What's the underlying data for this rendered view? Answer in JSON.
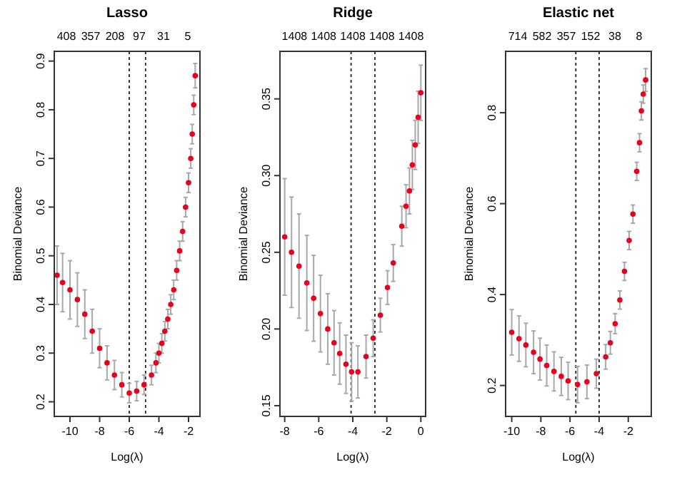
{
  "chart_data": [
    {
      "type": "scatter",
      "title": "Lasso",
      "xlabel": "Log(λ)",
      "ylabel": "Binomial Deviance",
      "marker": "circle",
      "xlim": [
        -11.06,
        -1.23
      ],
      "ylim": [
        0.17,
        0.92
      ],
      "xticks": [
        -10,
        -8,
        -6,
        -4,
        -2
      ],
      "yticks": [
        {
          "value": 0.2,
          "label": "0.2"
        },
        {
          "value": 0.3,
          "label": "0.3"
        },
        {
          "value": 0.4,
          "label": "0.4"
        },
        {
          "value": 0.5,
          "label": "0.5"
        },
        {
          "value": 0.6,
          "label": "0.6"
        },
        {
          "value": 0.7,
          "label": "0.7"
        },
        {
          "value": 0.8,
          "label": "0.8"
        },
        {
          "value": 0.9,
          "label": "0.9"
        }
      ],
      "annotations": [
        "408",
        "357",
        "208",
        "97",
        "31",
        "5"
      ],
      "series": [
        {
          "color": "#e8001c",
          "x": [
            -10.87,
            -10.5,
            -10,
            -9.5,
            -9,
            -8.5,
            -8,
            -7.5,
            -7,
            -6.5,
            -6,
            -5.5,
            -5,
            -4.5,
            -4.2,
            -4,
            -3.8,
            -3.6,
            -3.4,
            -3.2,
            -3,
            -2.8,
            -2.6,
            -2.4,
            -2.2,
            -2,
            -1.85,
            -1.75,
            -1.65,
            -1.55
          ],
          "values": [
            0.46,
            0.445,
            0.43,
            0.41,
            0.38,
            0.345,
            0.31,
            0.28,
            0.255,
            0.235,
            0.218,
            0.222,
            0.235,
            0.255,
            0.28,
            0.3,
            0.32,
            0.345,
            0.37,
            0.4,
            0.43,
            0.47,
            0.51,
            0.55,
            0.6,
            0.65,
            0.7,
            0.75,
            0.81,
            0.87
          ],
          "errors": [
            0.06,
            0.06,
            0.06,
            0.055,
            0.05,
            0.045,
            0.04,
            0.035,
            0.03,
            0.025,
            0.02,
            0.02,
            0.02,
            0.02,
            0.02,
            0.02,
            0.02,
            0.02,
            0.02,
            0.02,
            0.02,
            0.02,
            0.02,
            0.02,
            0.02,
            0.02,
            0.02,
            0.02,
            0.02,
            0.025
          ]
        }
      ],
      "ref_lines": [
        {
          "axis": "x",
          "value": -6,
          "line_style": "dotted"
        },
        {
          "axis": "x",
          "value": -4.9,
          "line_style": "dotted"
        }
      ]
    },
    {
      "type": "scatter",
      "title": "Ridge",
      "xlabel": "Log(λ)",
      "ylabel": "Binomial Deviance",
      "marker": "circle",
      "xlim": [
        -8.28,
        0.28
      ],
      "ylim": [
        0.143,
        0.381
      ],
      "xticks": [
        -8,
        -6,
        -4,
        -2,
        0
      ],
      "yticks": [
        {
          "value": 0.15,
          "label": "0.15"
        },
        {
          "value": 0.2,
          "label": "0.20"
        },
        {
          "value": 0.25,
          "label": "0.25"
        },
        {
          "value": 0.3,
          "label": "0.30"
        },
        {
          "value": 0.35,
          "label": "0.35"
        }
      ],
      "annotations": [
        "1408",
        "1408",
        "1408",
        "1408",
        "1408"
      ],
      "series": [
        {
          "color": "#e8001c",
          "x": [
            -8,
            -7.6,
            -7.16,
            -6.7,
            -6.3,
            -5.9,
            -5.47,
            -5.1,
            -4.77,
            -4.4,
            -4.07,
            -3.7,
            -3.22,
            -2.8,
            -2.38,
            -1.96,
            -1.62,
            -1.12,
            -0.87,
            -0.67,
            -0.5,
            -0.33,
            -0.16,
            0
          ],
          "values": [
            0.26,
            0.25,
            0.241,
            0.23,
            0.22,
            0.21,
            0.2,
            0.191,
            0.184,
            0.177,
            0.172,
            0.172,
            0.182,
            0.194,
            0.209,
            0.227,
            0.243,
            0.267,
            0.28,
            0.29,
            0.307,
            0.32,
            0.338,
            0.354
          ],
          "errors": [
            0.038,
            0.036,
            0.034,
            0.031,
            0.028,
            0.025,
            0.023,
            0.021,
            0.02,
            0.019,
            0.019,
            0.017,
            0.014,
            0.012,
            0.011,
            0.011,
            0.012,
            0.013,
            0.014,
            0.015,
            0.016,
            0.016,
            0.017,
            0.018
          ]
        }
      ],
      "ref_lines": [
        {
          "axis": "x",
          "value": -4.1,
          "line_style": "dotted"
        },
        {
          "axis": "x",
          "value": -2.7,
          "line_style": "dotted"
        }
      ]
    },
    {
      "type": "scatter",
      "title": "Elastic net",
      "xlabel": "Log(λ)",
      "ylabel": "Binomial Deviance",
      "marker": "circle",
      "xlim": [
        -10.42,
        -0.42
      ],
      "ylim": [
        0.132,
        0.935
      ],
      "xticks": [
        -10,
        -8,
        -6,
        -4,
        -2
      ],
      "yticks": [
        {
          "value": 0.2,
          "label": "0.2"
        },
        {
          "value": 0.4,
          "label": "0.4"
        },
        {
          "value": 0.6,
          "label": "0.6"
        },
        {
          "value": 0.8,
          "label": "0.8"
        }
      ],
      "annotations": [
        "714",
        "582",
        "357",
        "152",
        "38",
        "8"
      ],
      "series": [
        {
          "color": "#e8001c",
          "x": [
            -10,
            -9.5,
            -9.03,
            -8.5,
            -8.06,
            -7.6,
            -7.1,
            -6.6,
            -6.13,
            -5.48,
            -4.84,
            -4.19,
            -3.55,
            -3.23,
            -2.9,
            -2.58,
            -2.26,
            -1.94,
            -1.68,
            -1.42,
            -1.23,
            -1.1,
            -0.97,
            -0.81
          ],
          "values": [
            0.317,
            0.303,
            0.289,
            0.273,
            0.258,
            0.244,
            0.231,
            0.22,
            0.21,
            0.202,
            0.208,
            0.226,
            0.263,
            0.294,
            0.336,
            0.388,
            0.451,
            0.519,
            0.577,
            0.671,
            0.734,
            0.804,
            0.841,
            0.872
          ],
          "errors": [
            0.05,
            0.05,
            0.048,
            0.047,
            0.046,
            0.045,
            0.043,
            0.042,
            0.041,
            0.04,
            0.037,
            0.032,
            0.027,
            0.025,
            0.022,
            0.02,
            0.02,
            0.02,
            0.02,
            0.02,
            0.02,
            0.02,
            0.02,
            0.025
          ]
        }
      ],
      "ref_lines": [
        {
          "axis": "x",
          "value": -5.6,
          "line_style": "dotted"
        },
        {
          "axis": "x",
          "value": -4.0,
          "line_style": "dotted"
        }
      ]
    }
  ]
}
